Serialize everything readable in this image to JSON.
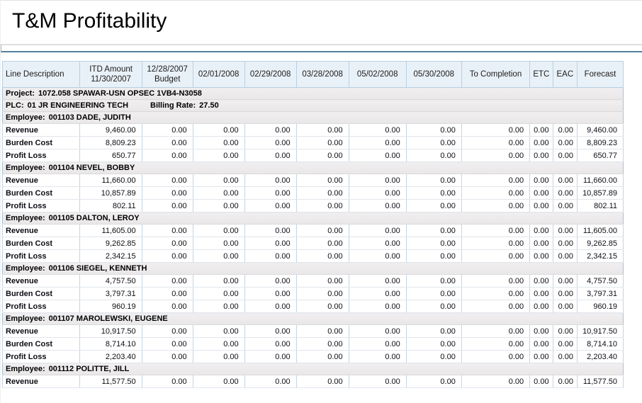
{
  "report": {
    "title": "T&M Profitability"
  },
  "table": {
    "columns": [
      {
        "label": "Line Description"
      },
      {
        "label": "ITD Amount\n11/30/2007"
      },
      {
        "label": "12/28/2007\nBudget"
      },
      {
        "label": "02/01/2008"
      },
      {
        "label": "02/29/2008"
      },
      {
        "label": "03/28/2008"
      },
      {
        "label": "05/02/2008"
      },
      {
        "label": "05/30/2008"
      },
      {
        "label": "To Completion"
      },
      {
        "label": "ETC"
      },
      {
        "label": "EAC"
      },
      {
        "label": "Forecast"
      }
    ],
    "project": {
      "label": "Project:",
      "value": "1072.058 SPAWAR-USN OPSEC 1VB4-N3058"
    },
    "plc": {
      "label": "PLC:",
      "value": "01 JR ENGINEERING TECH",
      "billing_rate_label": "Billing Rate:",
      "billing_rate": "27.50"
    },
    "employee_label": "Employee:",
    "employees": [
      {
        "id_name": "001103 DADE, JUDITH",
        "rows": [
          {
            "line": "Revenue",
            "values": [
              "9,460.00",
              "0.00",
              "0.00",
              "0.00",
              "0.00",
              "0.00",
              "0.00",
              "0.00",
              "0.00",
              "0.00",
              "9,460.00"
            ]
          },
          {
            "line": "Burden Cost",
            "values": [
              "8,809.23",
              "0.00",
              "0.00",
              "0.00",
              "0.00",
              "0.00",
              "0.00",
              "0.00",
              "0.00",
              "0.00",
              "8,809.23"
            ]
          },
          {
            "line": "Profit Loss",
            "values": [
              "650.77",
              "0.00",
              "0.00",
              "0.00",
              "0.00",
              "0.00",
              "0.00",
              "0.00",
              "0.00",
              "0.00",
              "650.77"
            ]
          }
        ]
      },
      {
        "id_name": "001104 NEVEL, BOBBY",
        "rows": [
          {
            "line": "Revenue",
            "values": [
              "11,660.00",
              "0.00",
              "0.00",
              "0.00",
              "0.00",
              "0.00",
              "0.00",
              "0.00",
              "0.00",
              "0.00",
              "11,660.00"
            ]
          },
          {
            "line": "Burden Cost",
            "values": [
              "10,857.89",
              "0.00",
              "0.00",
              "0.00",
              "0.00",
              "0.00",
              "0.00",
              "0.00",
              "0.00",
              "0.00",
              "10,857.89"
            ]
          },
          {
            "line": "Profit Loss",
            "values": [
              "802.11",
              "0.00",
              "0.00",
              "0.00",
              "0.00",
              "0.00",
              "0.00",
              "0.00",
              "0.00",
              "0.00",
              "802.11"
            ]
          }
        ]
      },
      {
        "id_name": "001105 DALTON, LEROY",
        "rows": [
          {
            "line": "Revenue",
            "values": [
              "11,605.00",
              "0.00",
              "0.00",
              "0.00",
              "0.00",
              "0.00",
              "0.00",
              "0.00",
              "0.00",
              "0.00",
              "11,605.00"
            ]
          },
          {
            "line": "Burden Cost",
            "values": [
              "9,262.85",
              "0.00",
              "0.00",
              "0.00",
              "0.00",
              "0.00",
              "0.00",
              "0.00",
              "0.00",
              "0.00",
              "9,262.85"
            ]
          },
          {
            "line": "Profit Loss",
            "values": [
              "2,342.15",
              "0.00",
              "0.00",
              "0.00",
              "0.00",
              "0.00",
              "0.00",
              "0.00",
              "0.00",
              "0.00",
              "2,342.15"
            ]
          }
        ]
      },
      {
        "id_name": "001106 SIEGEL, KENNETH",
        "rows": [
          {
            "line": "Revenue",
            "values": [
              "4,757.50",
              "0.00",
              "0.00",
              "0.00",
              "0.00",
              "0.00",
              "0.00",
              "0.00",
              "0.00",
              "0.00",
              "4,757.50"
            ]
          },
          {
            "line": "Burden Cost",
            "values": [
              "3,797.31",
              "0.00",
              "0.00",
              "0.00",
              "0.00",
              "0.00",
              "0.00",
              "0.00",
              "0.00",
              "0.00",
              "3,797.31"
            ]
          },
          {
            "line": "Profit Loss",
            "values": [
              "960.19",
              "0.00",
              "0.00",
              "0.00",
              "0.00",
              "0.00",
              "0.00",
              "0.00",
              "0.00",
              "0.00",
              "960.19"
            ]
          }
        ]
      },
      {
        "id_name": "001107 MAROLEWSKI, EUGENE",
        "rows": [
          {
            "line": "Revenue",
            "values": [
              "10,917.50",
              "0.00",
              "0.00",
              "0.00",
              "0.00",
              "0.00",
              "0.00",
              "0.00",
              "0.00",
              "0.00",
              "10,917.50"
            ]
          },
          {
            "line": "Burden Cost",
            "values": [
              "8,714.10",
              "0.00",
              "0.00",
              "0.00",
              "0.00",
              "0.00",
              "0.00",
              "0.00",
              "0.00",
              "0.00",
              "8,714.10"
            ]
          },
          {
            "line": "Profit Loss",
            "values": [
              "2,203.40",
              "0.00",
              "0.00",
              "0.00",
              "0.00",
              "0.00",
              "0.00",
              "0.00",
              "0.00",
              "0.00",
              "2,203.40"
            ]
          }
        ]
      },
      {
        "id_name": "001112 POLITTE, JILL",
        "rows": [
          {
            "line": "Revenue",
            "values": [
              "11,577.50",
              "0.00",
              "0.00",
              "0.00",
              "0.00",
              "0.00",
              "0.00",
              "0.00",
              "0.00",
              "0.00",
              "11,577.50"
            ]
          }
        ]
      }
    ]
  }
}
